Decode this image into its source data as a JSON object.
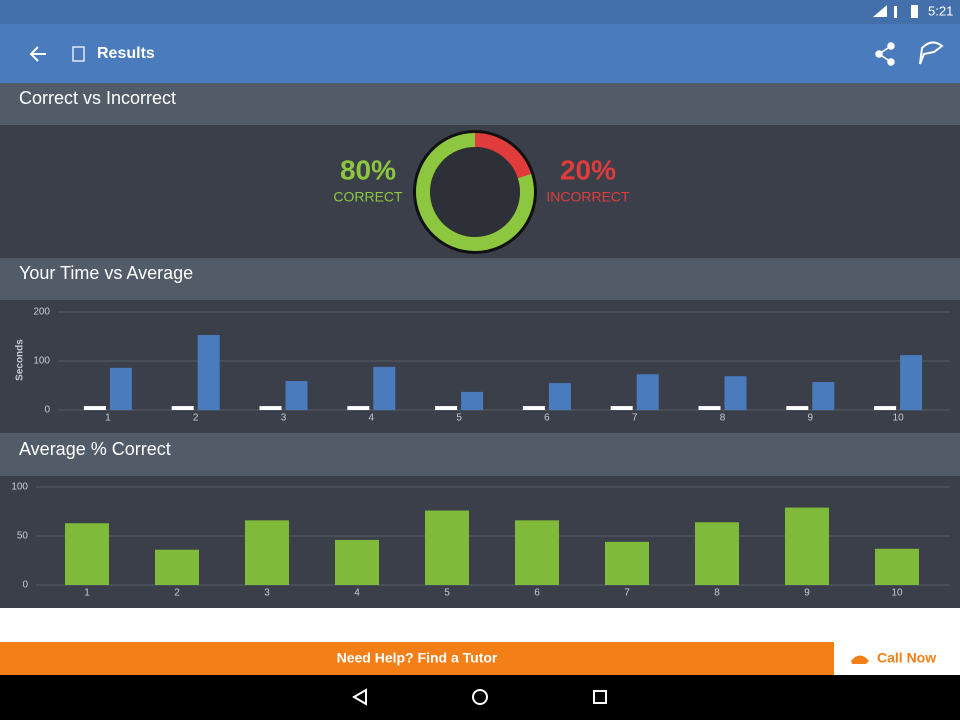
{
  "status_bar": {
    "time": "5:21"
  },
  "app_bar": {
    "title": "Results"
  },
  "chart_data": [
    {
      "type": "pie",
      "title": "Correct vs Incorrect",
      "categories": [
        "CORRECT",
        "INCORRECT"
      ],
      "values": [
        80,
        20
      ],
      "value_labels": [
        "80%",
        "20%"
      ],
      "colors": [
        "#8dc63f",
        "#e03c3c"
      ]
    },
    {
      "type": "bar",
      "title": "Your Time vs Average",
      "y_label": "Seconds",
      "categories": [
        "1",
        "2",
        "3",
        "4",
        "5",
        "6",
        "7",
        "8",
        "9",
        "10"
      ],
      "series": [
        {
          "color": "#ffffff",
          "values": [
            8,
            8,
            8,
            8,
            8,
            8,
            8,
            8,
            8,
            8
          ]
        },
        {
          "color": "#4a7bbd",
          "values": [
            86,
            153,
            59,
            88,
            37,
            55,
            73,
            69,
            57,
            112
          ]
        }
      ],
      "ylim": [
        0,
        200
      ],
      "yticks": [
        0,
        100,
        200
      ],
      "grid": true
    },
    {
      "type": "bar",
      "title": "Average % Correct",
      "categories": [
        "1",
        "2",
        "3",
        "4",
        "5",
        "6",
        "7",
        "8",
        "9",
        "10"
      ],
      "values": [
        63,
        36,
        66,
        46,
        76,
        66,
        44,
        64,
        79,
        37
      ],
      "color": "#7fba3a",
      "ylim": [
        0,
        100
      ],
      "yticks": [
        0,
        50,
        100
      ],
      "grid": true
    }
  ],
  "banner": {
    "text": "Need Help? Find a Tutor",
    "button": "Call Now"
  }
}
